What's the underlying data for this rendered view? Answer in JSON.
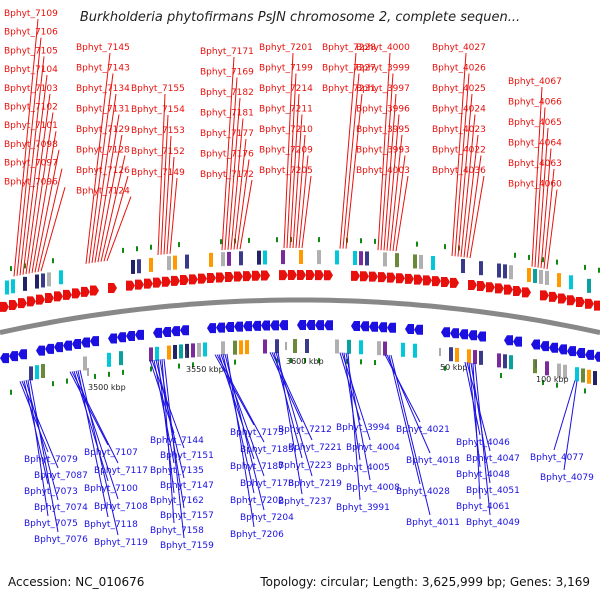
{
  "title": "Burkholderia phytofirmans PsJN chromosome 2, complete sequen...",
  "accession": "Accession: NC_010676",
  "summary": "Topology: circular; Length: 3,625,999 bp; Genes: 3,169",
  "colors": {
    "forward": "#e8100c",
    "reverse": "#1b10e0",
    "backbone": "#888888",
    "tick": "#118811"
  },
  "scale_labels": [
    "3500 kbp",
    "3550 kbp",
    "3600 kbp",
    "50 kbp",
    "100 kbp"
  ],
  "forward_genes": [
    "Bphyt_7109",
    "Bphyt_7106",
    "Bphyt_7105",
    "Bphyt_7104",
    "Bphyt_7103",
    "Bphyt_7102",
    "Bphyt_7101",
    "Bphyt_7098",
    "Bphyt_7097",
    "Bphyt_7096",
    "Bphyt_7145",
    "Bphyt_7143",
    "Bphyt_7134",
    "Bphyt_7131",
    "Bphyt_7129",
    "Bphyt_7128",
    "Bphyt_7126",
    "Bphyt_7124",
    "Bphyt_7155",
    "Bphyt_7154",
    "Bphyt_7153",
    "Bphyt_7152",
    "Bphyt_7149",
    "Bphyt_7171",
    "Bphyt_7169",
    "Bphyt_7182",
    "Bphyt_7181",
    "Bphyt_7177",
    "Bphyt_7176",
    "Bphyt_7172",
    "Bphyt_7201",
    "Bphyt_7199",
    "Bphyt_7214",
    "Bphyt_7211",
    "Bphyt_7210",
    "Bphyt_7209",
    "Bphyt_7205",
    "Bphyt_7228",
    "Bphyt_7227",
    "Bphyt_7231",
    "Bphyt_4000",
    "Bphyt_3999",
    "Bphyt_3997",
    "Bphyt_3996",
    "Bphyt_3995",
    "Bphyt_3993",
    "Bphyt_4003",
    "Bphyt_4027",
    "Bphyt_4026",
    "Bphyt_4025",
    "Bphyt_4024",
    "Bphyt_4023",
    "Bphyt_4022",
    "Bphyt_4036",
    "Bphyt_4067",
    "Bphyt_4066",
    "Bphyt_4065",
    "Bphyt_4064",
    "Bphyt_4063",
    "Bphyt_4060"
  ],
  "reverse_genes": [
    "Bphyt_7079",
    "Bphyt_7087",
    "Bphyt_7073",
    "Bphyt_7074",
    "Bphyt_7075",
    "Bphyt_7076",
    "Bphyt_7107",
    "Bphyt_7117",
    "Bphyt_7100",
    "Bphyt_7108",
    "Bphyt_7118",
    "Bphyt_7119",
    "Bphyt_7144",
    "Bphyt_7151",
    "Bphyt_7135",
    "Bphyt_7147",
    "Bphyt_7162",
    "Bphyt_7157",
    "Bphyt_7158",
    "Bphyt_7159",
    "Bphyt_7173",
    "Bphyt_7185",
    "Bphyt_7187",
    "Bphyt_7178",
    "Bphyt_7202",
    "Bphyt_7204",
    "Bphyt_7206",
    "Bphyt_7212",
    "Bphyt_7221",
    "Bphyt_7223",
    "Bphyt_7219",
    "Bphyt_7237",
    "Bphyt_3994",
    "Bphyt_4004",
    "Bphyt_4005",
    "Bphyt_4008",
    "Bphyt_3991",
    "Bphyt_4021",
    "Bphyt_4018",
    "Bphyt_4028",
    "Bphyt_4011",
    "Bphyt_4046",
    "Bphyt_4047",
    "Bphyt_4048",
    "Bphyt_4051",
    "Bphyt_4061",
    "Bphyt_4049",
    "Bphyt_4077",
    "Bphyt_4079"
  ]
}
